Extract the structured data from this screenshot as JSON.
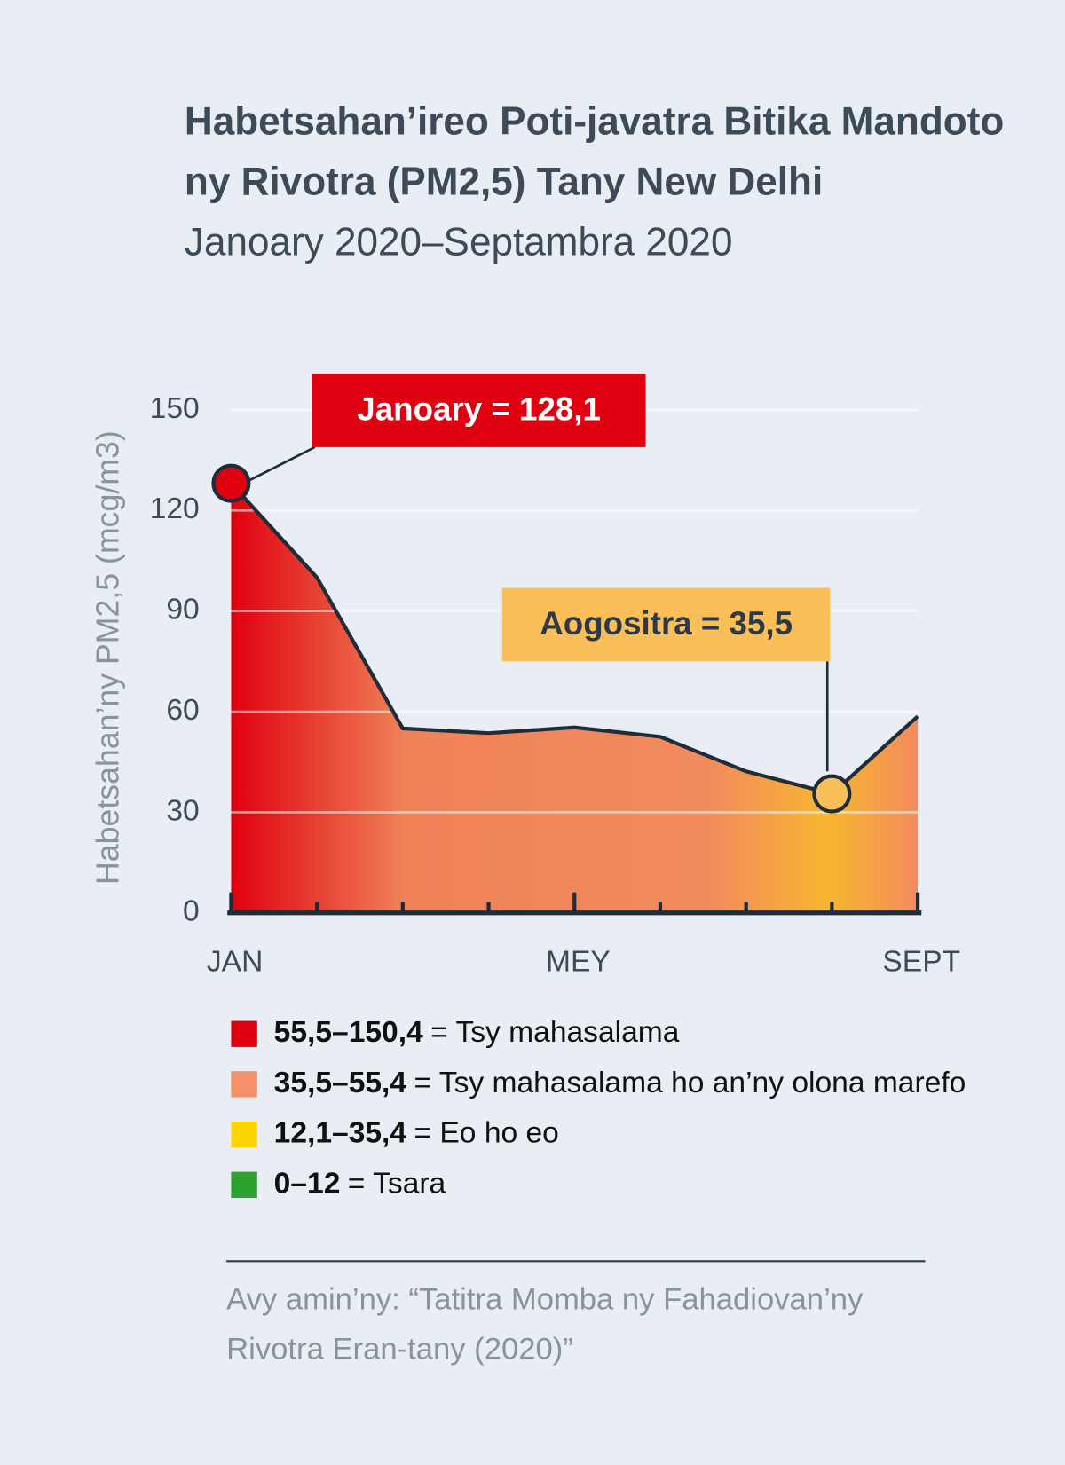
{
  "chart_data": {
    "type": "area",
    "title": [
      "Habetsahan’ireo Poti-javatra Bitika Mandoto",
      "ny Rivotra (PM2,5) Tany New Delhi"
    ],
    "subtitle": "Janoary 2020–Septambra 2020",
    "y_label": "Habetsahan’ny PM2,5 (mcg/m3)",
    "categories": [
      "JAN",
      null,
      null,
      null,
      "MEY",
      null,
      null,
      null,
      "SEPT"
    ],
    "values": [
      128.1,
      100,
      55,
      53.6,
      55.3,
      52.5,
      42.2,
      35.5,
      58.6
    ],
    "color": "#1f2d3a",
    "ylim": [
      0,
      150
    ],
    "yticks": [
      0,
      30,
      60,
      90,
      120,
      150
    ],
    "grid": true,
    "annotations": [
      {
        "text": "Janoary = 128,1",
        "color": "#e0000f"
      },
      {
        "text": "Aogositra = 35,5",
        "color": "#fbbf5a"
      }
    ],
    "legend": [
      {
        "range": "55,5–150,4",
        "label": "= Tsy mahasalama",
        "color": "#e0000f"
      },
      {
        "range": "35,5–55,4",
        "label": "= Tsy mahasalama ho an’ny olona marefo",
        "color": "#f4906a"
      },
      {
        "range": "12,1–35,4",
        "label": "= Eo ho eo",
        "color": "#ffd500"
      },
      {
        "range": "0–12",
        "label": "= Tsara",
        "color": "#2ea22e"
      }
    ],
    "source": [
      "Avy amin’ny: “Tatitra Momba ny Fahadiovan’ny",
      "Rivotra Eran-tany (2020)”"
    ]
  }
}
